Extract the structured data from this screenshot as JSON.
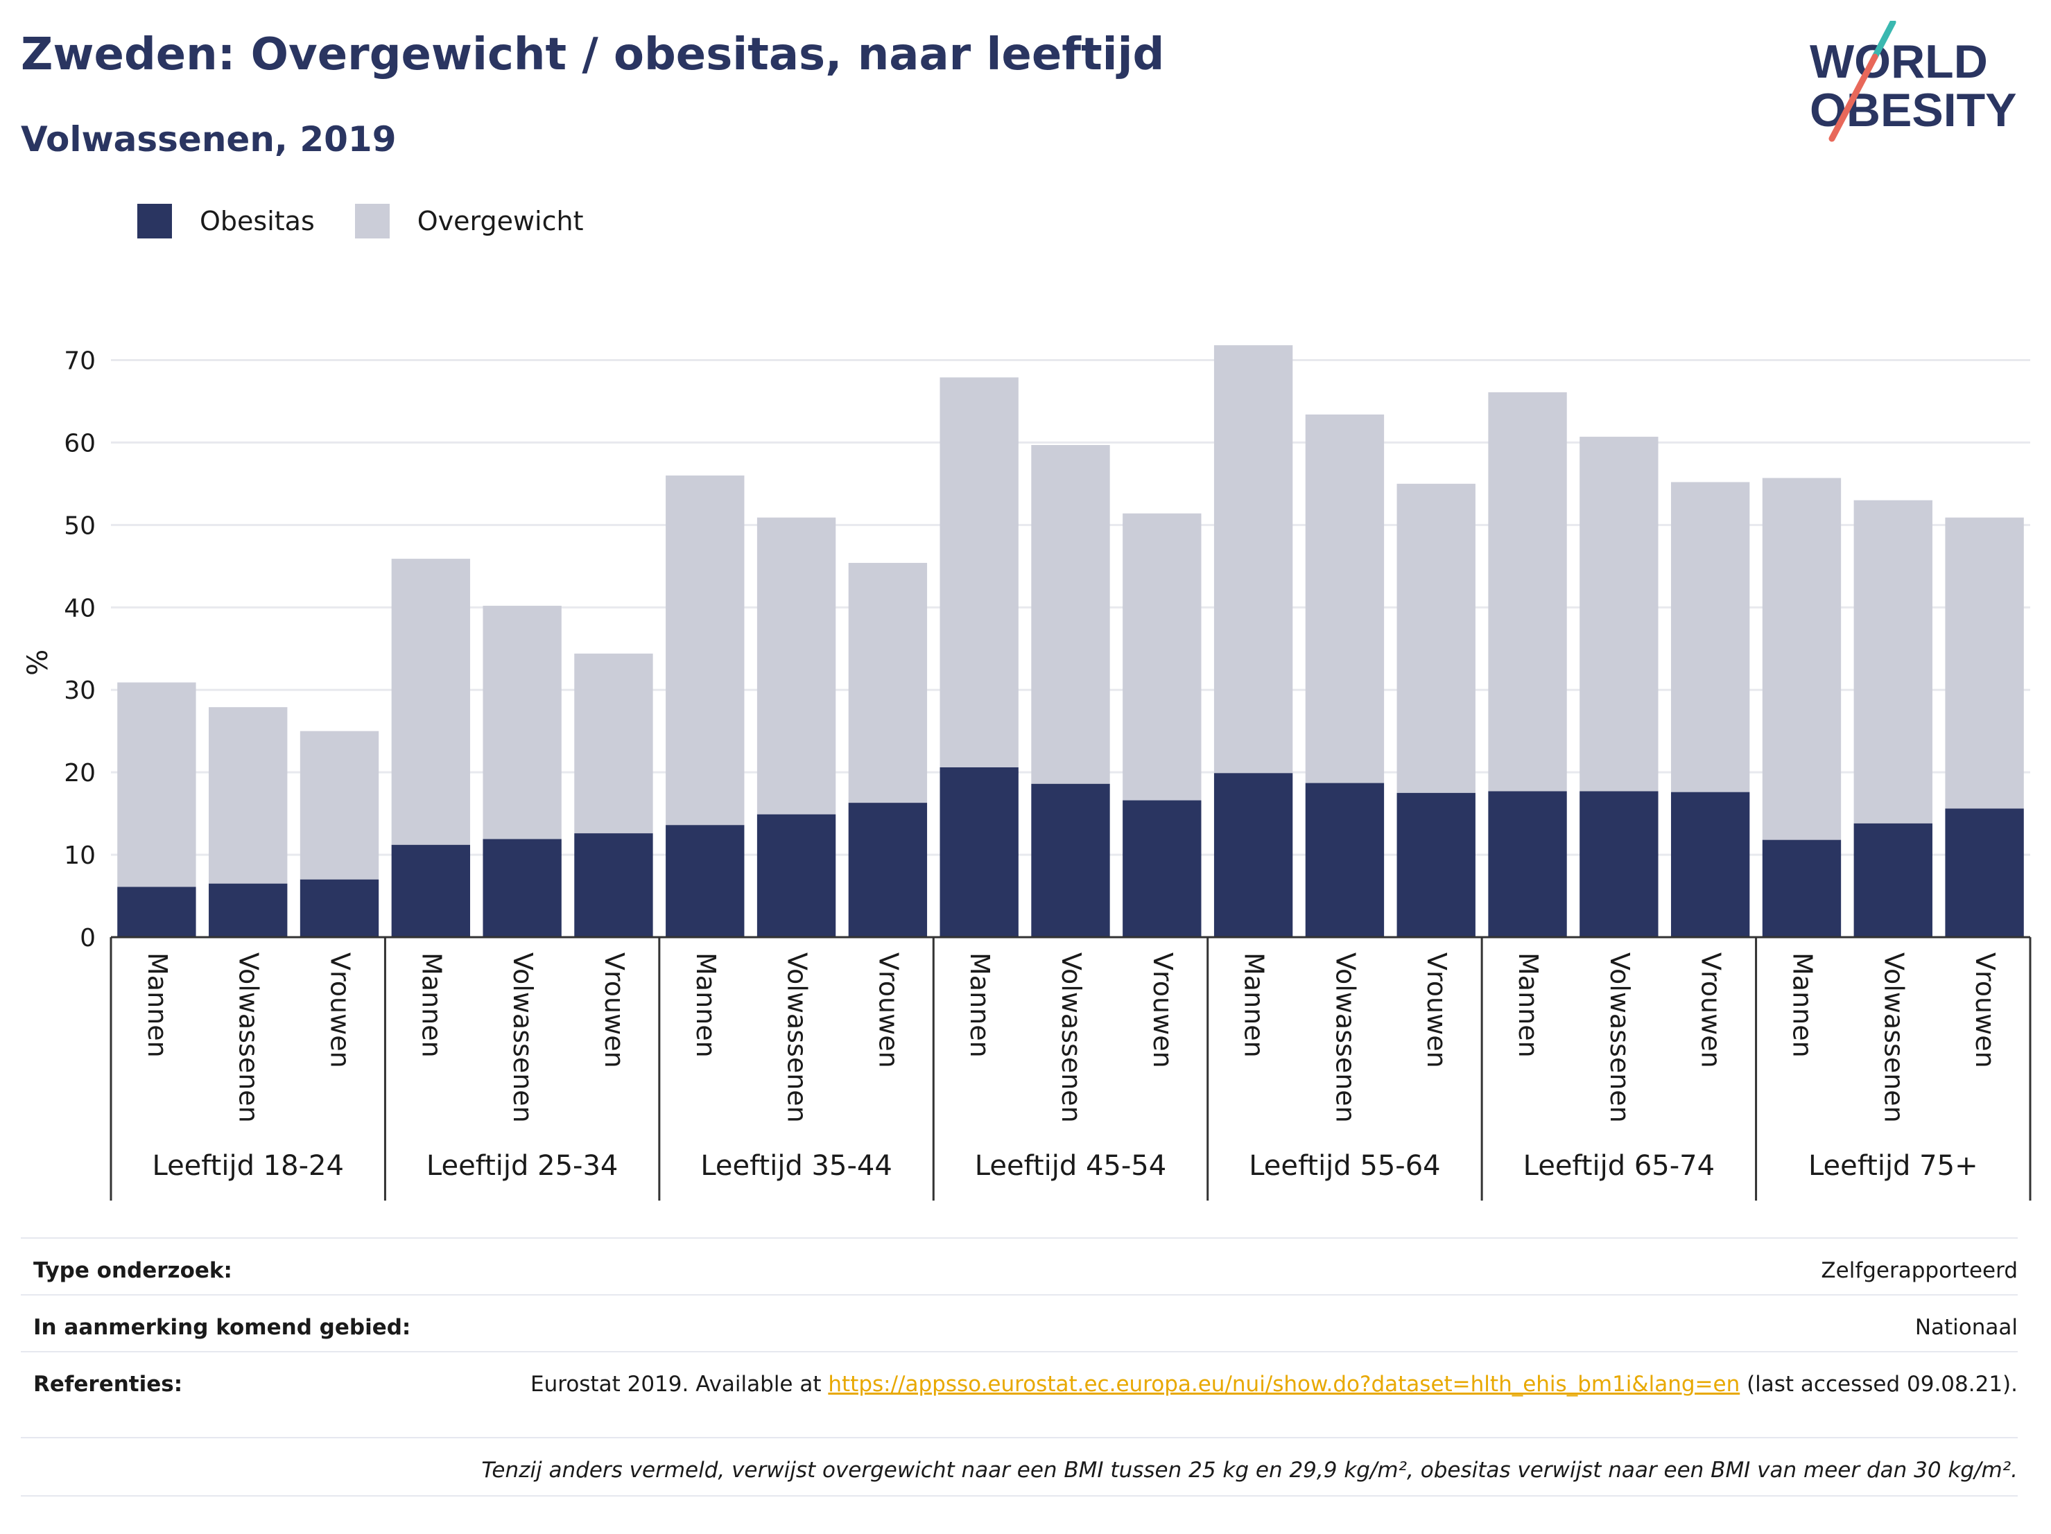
{
  "title": "Zweden: Overgewicht / obesitas, naar leeftijd",
  "subtitle": "Volwassenen, 2019",
  "logo": {
    "line1": "WORLD",
    "line2": "OBESITY"
  },
  "legend": [
    {
      "label": "Obesitas",
      "color": "#2a3561"
    },
    {
      "label": "Overgewicht",
      "color": "#cbcdd8"
    }
  ],
  "chart_data": {
    "type": "bar",
    "stacked": true,
    "ylabel": "%",
    "ylim": [
      0,
      75
    ],
    "yticks": [
      0,
      10,
      20,
      30,
      40,
      50,
      60,
      70
    ],
    "grid": true,
    "groups": [
      "Leeftijd 18-24",
      "Leeftijd 25-34",
      "Leeftijd 35-44",
      "Leeftijd 45-54",
      "Leeftijd 55-64",
      "Leeftijd 65-74",
      "Leeftijd 75+"
    ],
    "subcategories": [
      "Mannen",
      "Volwassenen",
      "Vrouwen"
    ],
    "series": [
      {
        "name": "Obesitas",
        "color": "#2a3561",
        "values": [
          6.1,
          6.5,
          7.0,
          11.2,
          11.9,
          12.6,
          13.6,
          14.9,
          16.3,
          20.6,
          18.6,
          16.6,
          19.9,
          18.7,
          17.5,
          17.7,
          17.7,
          17.6,
          11.8,
          13.8,
          15.6
        ]
      },
      {
        "name": "Overgewicht",
        "color": "#cbcdd8",
        "values": [
          24.8,
          21.4,
          18.0,
          34.7,
          28.3,
          21.8,
          42.4,
          36.0,
          29.1,
          47.3,
          41.1,
          34.8,
          51.9,
          44.7,
          37.5,
          48.4,
          43.0,
          37.6,
          43.9,
          39.2,
          35.3
        ]
      }
    ]
  },
  "info": {
    "survey_label": "Type onderzoek:",
    "survey_value": "Zelfgerapporteerd",
    "area_label": "In aanmerking komend gebied:",
    "area_value": "Nationaal",
    "ref_label": "Referenties:",
    "ref_prefix": "Eurostat 2019. Available at ",
    "ref_link": "https://appsso.eurostat.ec.europa.eu/nui/show.do?dataset=hlth_ehis_bm1i&lang=en",
    "ref_suffix": " (last accessed 09.08.21).",
    "note": "Tenzij anders vermeld, verwijst overgewicht naar een BMI tussen 25 kg en 29,9 kg/m², obesitas verwijst naar een BMI van meer dan 30 kg/m²."
  }
}
